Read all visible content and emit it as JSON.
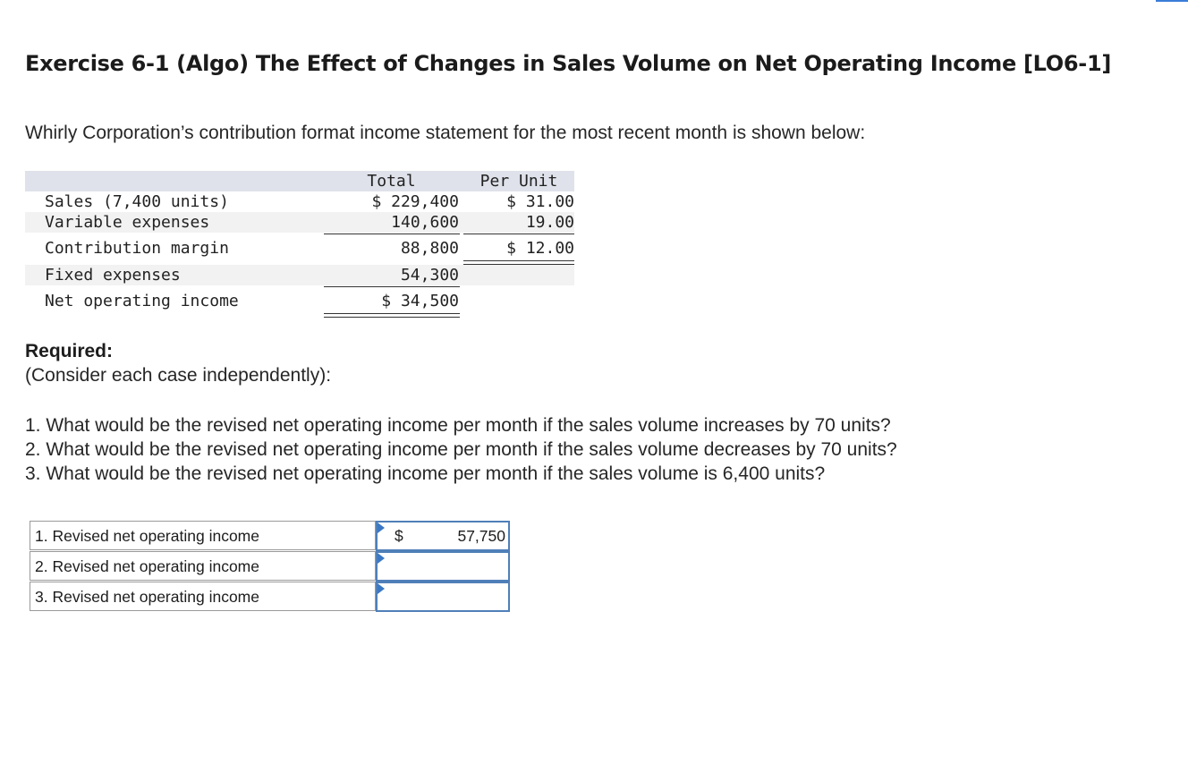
{
  "title": "Exercise 6-1 (Algo) The Effect of Changes in Sales Volume on Net Operating Income [LO6-1]",
  "intro": "Whirly Corporation’s contribution format income statement for the most recent month is shown below:",
  "statement": {
    "header_total": "Total",
    "header_per_unit": "Per Unit",
    "rows": [
      {
        "label": "Sales (7,400 units)",
        "total": "$ 229,400",
        "per_unit": "$ 31.00"
      },
      {
        "label": "Variable expenses",
        "total": "140,600",
        "per_unit": "19.00"
      },
      {
        "label": "Contribution margin",
        "total": "88,800",
        "per_unit": "$ 12.00"
      },
      {
        "label": "Fixed expenses",
        "total": "54,300",
        "per_unit": ""
      },
      {
        "label": "Net operating income",
        "total": "$ 34,500",
        "per_unit": ""
      }
    ]
  },
  "required": {
    "heading": "Required:",
    "note": "(Consider each case independently):",
    "questions": [
      "1. What would be the revised net operating income per month if the sales volume increases by 70 units?",
      "2. What would be the revised net operating income per month if the sales volume decreases by 70 units?",
      "3. What would be the revised net operating income per month if the sales volume is 6,400 units?"
    ]
  },
  "answers": [
    {
      "label": "1. Revised net operating income",
      "currency": "$",
      "value": "57,750"
    },
    {
      "label": "2. Revised net operating income",
      "currency": "",
      "value": ""
    },
    {
      "label": "3. Revised net operating income",
      "currency": "",
      "value": ""
    }
  ]
}
